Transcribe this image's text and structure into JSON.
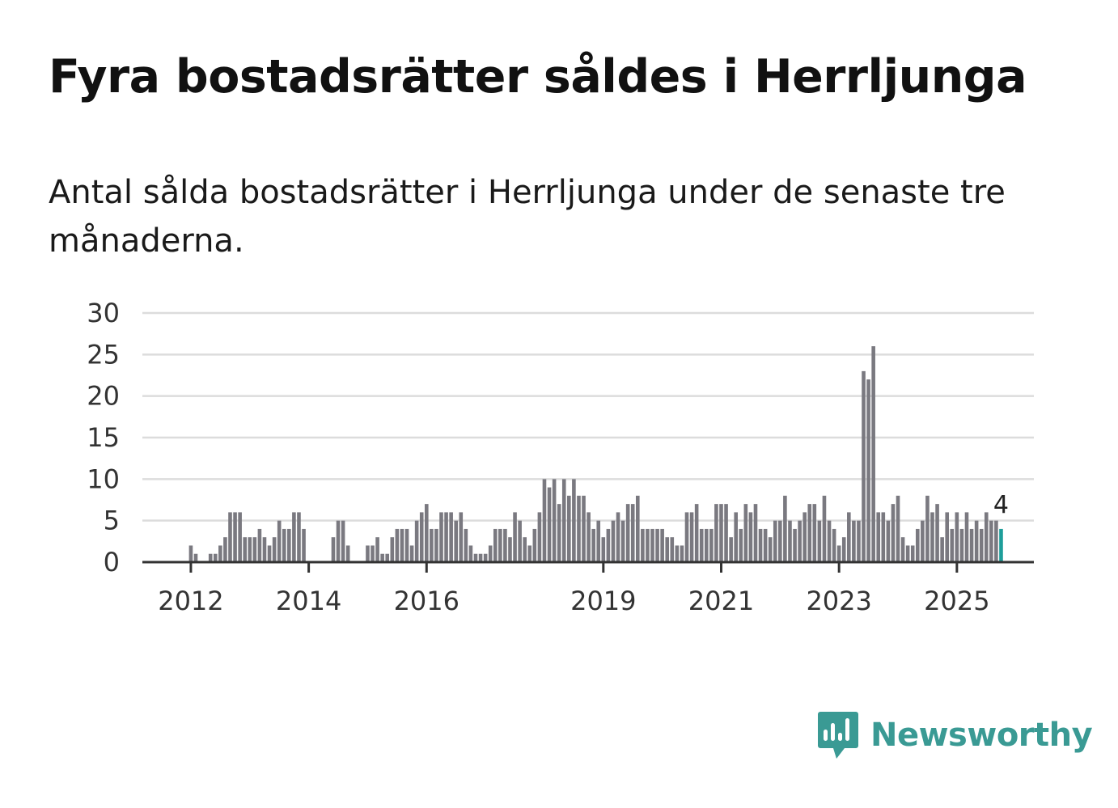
{
  "title": "Fyra bostadsrätter såldes i Herrljunga",
  "subtitle": "Antal sålda bostadsrätter i Herrljunga under de senaste tre månaderna.",
  "brand": {
    "name": "Newsworthy",
    "color": "#3a9a94",
    "icon": "newsworthy-logo-icon"
  },
  "chart_data": {
    "type": "bar",
    "title": "Fyra bostadsrätter såldes i Herrljunga",
    "xlabel": "",
    "ylabel": "",
    "ylim": [
      0,
      30
    ],
    "yticks": [
      0,
      5,
      10,
      15,
      20,
      25,
      30
    ],
    "grid": true,
    "start": "2011-06",
    "xtick_labels": [
      {
        "label": "2012",
        "index": 9
      },
      {
        "label": "2014",
        "index": 33
      },
      {
        "label": "2016",
        "index": 57
      },
      {
        "label": "2019",
        "index": 93
      },
      {
        "label": "2021",
        "index": 117
      },
      {
        "label": "2023",
        "index": 141
      },
      {
        "label": "2025",
        "index": 165
      }
    ],
    "values": [
      0,
      0,
      0,
      0,
      0,
      0,
      0,
      0,
      0,
      2,
      1,
      0,
      0,
      1,
      1,
      2,
      3,
      6,
      6,
      6,
      3,
      3,
      3,
      4,
      3,
      2,
      3,
      5,
      4,
      4,
      6,
      6,
      4,
      0,
      0,
      0,
      0,
      0,
      3,
      5,
      5,
      2,
      0,
      0,
      0,
      2,
      2,
      3,
      1,
      1,
      3,
      4,
      4,
      4,
      2,
      5,
      6,
      7,
      4,
      4,
      6,
      6,
      6,
      5,
      6,
      4,
      2,
      1,
      1,
      1,
      2,
      4,
      4,
      4,
      3,
      6,
      5,
      3,
      2,
      4,
      6,
      10,
      9,
      10,
      7,
      10,
      8,
      10,
      8,
      8,
      6,
      4,
      5,
      3,
      4,
      5,
      6,
      5,
      7,
      7,
      8,
      4,
      4,
      4,
      4,
      4,
      3,
      3,
      2,
      2,
      6,
      6,
      7,
      4,
      4,
      4,
      7,
      7,
      7,
      3,
      6,
      4,
      7,
      6,
      7,
      4,
      4,
      3,
      5,
      5,
      8,
      5,
      4,
      5,
      6,
      7,
      7,
      5,
      8,
      5,
      4,
      2,
      3,
      6,
      5,
      5,
      23,
      22,
      26,
      6,
      6,
      5,
      7,
      8,
      3,
      2,
      2,
      4,
      5,
      8,
      6,
      7,
      3,
      6,
      4,
      6,
      4,
      6,
      4,
      5,
      4,
      6,
      5,
      5,
      4
    ],
    "highlight": {
      "index": 174,
      "value": 4,
      "label": "4"
    },
    "colors": {
      "bar": "#7a7980",
      "highlight": "#1e9e9a",
      "grid": "#dcdcdc",
      "axis": "#333333"
    }
  }
}
